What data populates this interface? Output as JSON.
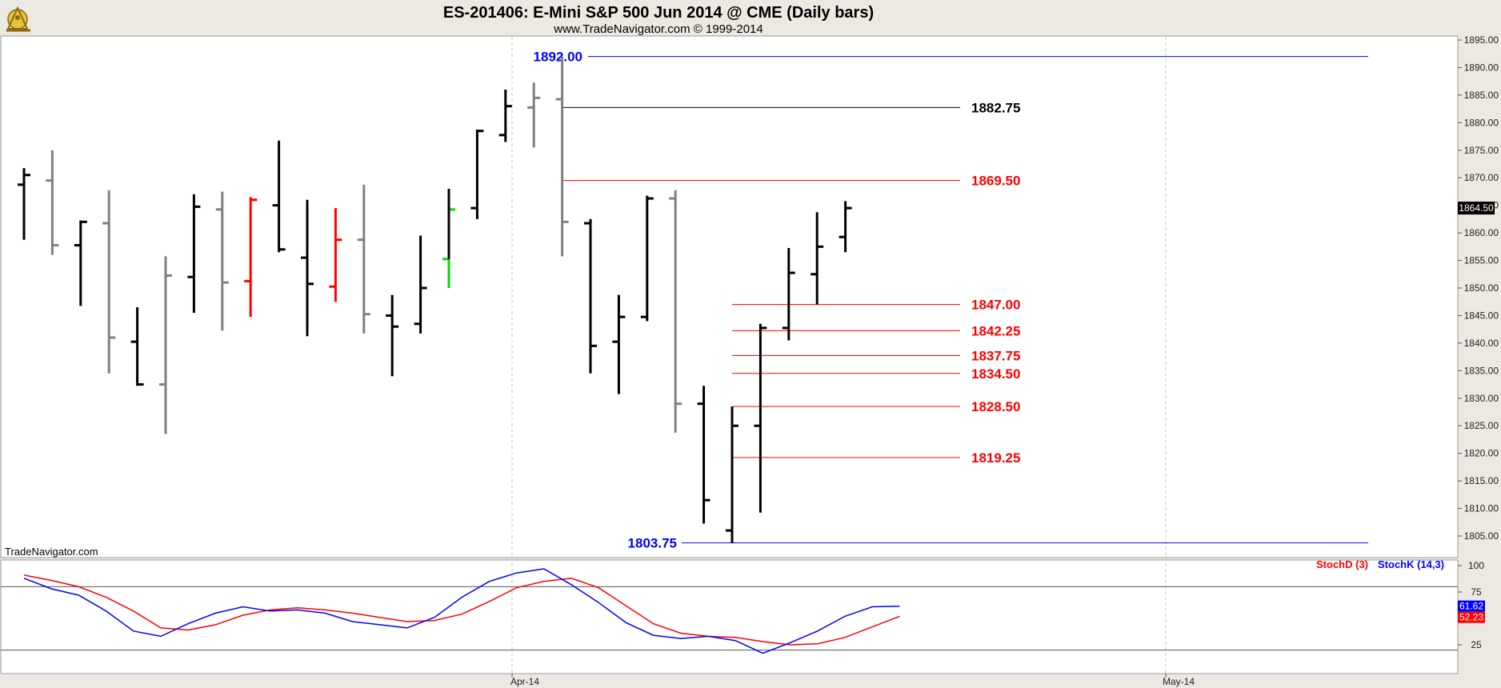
{
  "header": {
    "title": "ES-201406:  E-Mini S&P 500 Jun 2014 @ CME  (Daily bars)",
    "subtitle": "www.TradeNavigator.com © 1999-2014",
    "logo_icon": "sextant-logo-icon"
  },
  "watermark": "TradeNavigator.com",
  "colors": {
    "frame_bg": "#ece9e2",
    "up_bar": "#000000",
    "down_bar": "#808080",
    "red_bar": "#ff0000",
    "green_bar": "#00dd00",
    "blue_level": "#0000ff",
    "black_level": "#000000",
    "red_level": "#ff0000",
    "stoch_k": "#0000ff",
    "stoch_d": "#ff0000"
  },
  "chart_data": [
    {
      "type": "ohlc",
      "title": "ES-201406:  E-Mini S&P 500 Jun 2014 @ CME  (Daily bars)",
      "ylim": [
        1802.5,
        1895
      ],
      "yticks": [
        "1895.00",
        "1890.00",
        "1885.00",
        "1880.00",
        "1875.00",
        "1870.00",
        "1865.00",
        "1860.00",
        "1855.00",
        "1850.00",
        "1845.00",
        "1840.00",
        "1835.00",
        "1830.00",
        "1825.00",
        "1820.00",
        "1815.00",
        "1810.00",
        "1805.00"
      ],
      "xticks": [
        "Apr-14",
        "May-14"
      ],
      "last_price": "1864.50",
      "bars": [
        {
          "o": 1868.75,
          "h": 1871.75,
          "l": 1858.75,
          "c": 1870.5,
          "color": "up"
        },
        {
          "o": 1869.5,
          "h": 1875.0,
          "l": 1856.0,
          "c": 1857.75,
          "color": "down"
        },
        {
          "o": 1857.75,
          "h": 1862.25,
          "l": 1846.75,
          "c": 1862.0,
          "color": "up"
        },
        {
          "o": 1861.75,
          "h": 1867.75,
          "l": 1834.5,
          "c": 1841.0,
          "color": "down"
        },
        {
          "o": 1840.25,
          "h": 1846.5,
          "l": 1832.25,
          "c": 1832.5,
          "color": "up"
        },
        {
          "o": 1832.5,
          "h": 1855.75,
          "l": 1823.5,
          "c": 1852.25,
          "color": "down"
        },
        {
          "o": 1852.0,
          "h": 1867.0,
          "l": 1845.5,
          "c": 1864.75,
          "color": "up"
        },
        {
          "o": 1864.25,
          "h": 1867.5,
          "l": 1842.25,
          "c": 1851.0,
          "color": "down"
        },
        {
          "o": 1851.25,
          "h": 1866.5,
          "l": 1844.75,
          "c": 1866.0,
          "color": "red"
        },
        {
          "o": 1865.0,
          "h": 1876.75,
          "l": 1856.5,
          "c": 1857.0,
          "color": "up"
        },
        {
          "o": 1855.5,
          "h": 1866.0,
          "l": 1841.25,
          "c": 1850.75,
          "color": "up"
        },
        {
          "o": 1850.25,
          "h": 1864.5,
          "l": 1847.5,
          "c": 1858.75,
          "color": "red"
        },
        {
          "o": 1858.75,
          "h": 1868.75,
          "l": 1841.75,
          "c": 1845.25,
          "color": "down"
        },
        {
          "o": 1845.0,
          "h": 1848.75,
          "l": 1834.0,
          "c": 1843.0,
          "color": "up"
        },
        {
          "o": 1843.5,
          "h": 1859.5,
          "l": 1841.75,
          "c": 1850.0,
          "color": "up"
        },
        {
          "o": 1855.25,
          "h": 1868.0,
          "l": 1850.0,
          "c": 1864.25,
          "color": "green"
        },
        {
          "o": 1864.5,
          "h": 1878.75,
          "l": 1862.5,
          "c": 1878.5,
          "color": "up"
        },
        {
          "o": 1877.75,
          "h": 1886.0,
          "l": 1876.5,
          "c": 1883.0,
          "color": "up"
        },
        {
          "o": 1882.75,
          "h": 1887.25,
          "l": 1875.5,
          "c": 1884.5,
          "color": "down"
        },
        {
          "o": 1884.25,
          "h": 1892.0,
          "l": 1855.75,
          "c": 1862.0,
          "color": "down"
        },
        {
          "o": 1861.75,
          "h": 1862.5,
          "l": 1834.5,
          "c": 1839.5,
          "color": "up"
        },
        {
          "o": 1840.25,
          "h": 1848.75,
          "l": 1830.75,
          "c": 1844.75,
          "color": "up"
        },
        {
          "o": 1844.75,
          "h": 1866.75,
          "l": 1844.0,
          "c": 1866.25,
          "color": "up"
        },
        {
          "o": 1866.25,
          "h": 1867.75,
          "l": 1823.75,
          "c": 1829.0,
          "color": "down"
        },
        {
          "o": 1829.0,
          "h": 1832.25,
          "l": 1807.25,
          "c": 1811.5,
          "color": "up"
        },
        {
          "o": 1806.0,
          "h": 1828.5,
          "l": 1803.75,
          "c": 1825.0,
          "color": "up"
        },
        {
          "o": 1825.0,
          "h": 1843.5,
          "l": 1809.25,
          "c": 1842.75,
          "color": "up"
        },
        {
          "o": 1842.75,
          "h": 1857.25,
          "l": 1840.5,
          "c": 1852.75,
          "color": "up"
        },
        {
          "o": 1852.5,
          "h": 1863.75,
          "l": 1847.0,
          "c": 1857.5,
          "color": "up"
        },
        {
          "o": 1859.25,
          "h": 1865.75,
          "l": 1856.5,
          "c": 1864.5,
          "color": "up"
        }
      ],
      "levels": [
        {
          "value": 1892.0,
          "label": "1892.00",
          "color": "blue",
          "style": "wide"
        },
        {
          "value": 1882.75,
          "label": "1882.75",
          "color": "black",
          "style": "fib"
        },
        {
          "value": 1869.5,
          "label": "1869.50",
          "color": "red",
          "style": "fib"
        },
        {
          "value": 1847.0,
          "label": "1847.00",
          "color": "red",
          "style": "short"
        },
        {
          "value": 1842.25,
          "label": "1842.25",
          "color": "red",
          "style": "short"
        },
        {
          "value": 1837.75,
          "label": "1837.75",
          "color": "red",
          "style": "short"
        },
        {
          "value": 1834.5,
          "label": "1834.50",
          "color": "red",
          "style": "short"
        },
        {
          "value": 1828.5,
          "label": "1828.50",
          "color": "red",
          "style": "short"
        },
        {
          "value": 1819.25,
          "label": "1819.25",
          "color": "red",
          "style": "short"
        },
        {
          "value": 1803.75,
          "label": "1803.75",
          "color": "blue",
          "style": "wide"
        }
      ]
    },
    {
      "type": "line",
      "title": "",
      "ylim": [
        0,
        100
      ],
      "yticks": [
        "100",
        "75",
        "25"
      ],
      "ref_lines": [
        80,
        20
      ],
      "series": [
        {
          "name": "StochD (3)",
          "color": "#ff0000",
          "last": "52.23",
          "values": [
            91,
            86,
            80,
            70,
            57,
            41,
            39,
            44,
            53,
            58,
            60,
            58,
            55,
            51,
            47,
            48,
            54,
            66,
            79,
            85,
            88,
            79,
            62,
            45,
            36,
            33,
            32,
            28,
            25,
            26,
            32,
            42,
            52
          ]
        },
        {
          "name": "StochK (14,3)",
          "color": "#0000ff",
          "last": "61.62",
          "values": [
            88,
            78,
            72,
            57,
            38,
            33,
            45,
            55,
            61,
            57,
            58,
            55,
            47,
            44,
            41,
            51,
            70,
            85,
            93,
            97,
            82,
            65,
            46,
            34,
            31,
            33,
            29,
            17,
            27,
            38,
            52,
            61,
            61.62
          ]
        }
      ]
    }
  ]
}
